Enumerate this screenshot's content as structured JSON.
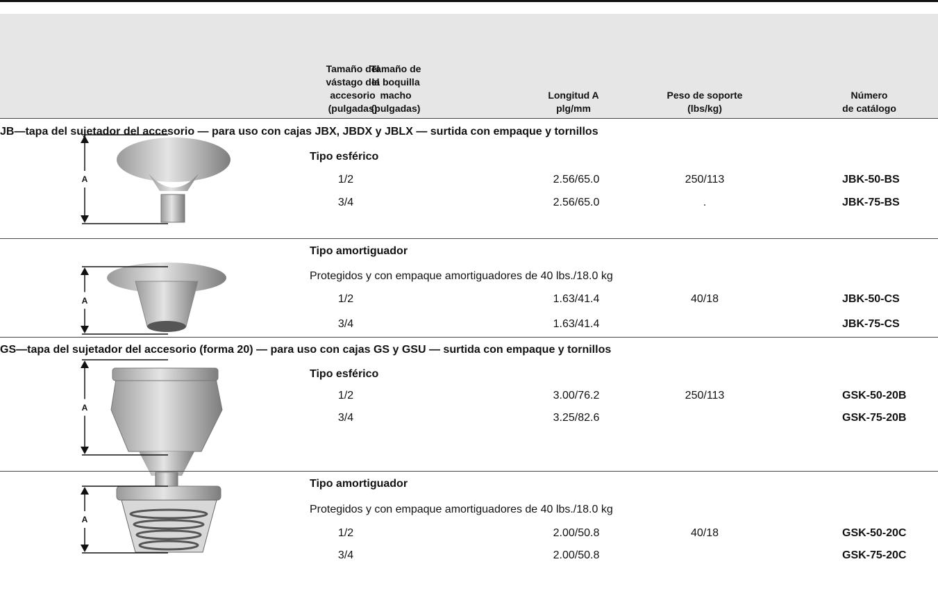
{
  "header": {
    "columns": [
      [
        "Tamaño del",
        "vástago del",
        "accesorio",
        "(pulgadas)"
      ],
      [
        "Tamaño de",
        "la boquilla",
        "macho",
        "(pulgadas)"
      ],
      [
        "Longitud A",
        "plg/mm"
      ],
      [
        "Peso de soporte",
        "(lbs/kg)"
      ],
      [
        "Número",
        "de catálogo"
      ]
    ]
  },
  "sections": [
    {
      "title": "JB—tapa del sujetador del accesorio — para uso con cajas JBX, JBDX y JBLX — surtida con empaque y tornillos",
      "groups": [
        {
          "dimension": "A",
          "type": "Tipo esférico",
          "rows": [
            {
              "size": "1/2",
              "length": "2.56/65.0",
              "weight": "250/113",
              "catalog": "JBK-50-BS"
            },
            {
              "size": "3/4",
              "length": "2.56/65.0",
              "weight": ".",
              "catalog": "JBK-75-BS"
            }
          ]
        },
        {
          "dimension": "A",
          "type": "Tipo amortiguador",
          "note": "Protegidos y con empaque amortiguadores de 40 lbs./18.0 kg",
          "rows": [
            {
              "size": "1/2",
              "length": "1.63/41.4",
              "weight": "40/18",
              "catalog": "JBK-50-CS"
            },
            {
              "size": "3/4",
              "length": "1.63/41.4",
              "catalog": "JBK-75-CS"
            }
          ]
        }
      ]
    },
    {
      "title": "GS—tapa del sujetador del accesorio (forma 20) — para uso con cajas GS y GSU — surtida con empaque y tornillos",
      "groups": [
        {
          "dimension": "A",
          "type": "Tipo esférico",
          "rows": [
            {
              "size": "1/2",
              "length": "3.00/76.2",
              "weight": "250/113",
              "catalog": "GSK-50-20B"
            },
            {
              "size": "3/4",
              "length": "3.25/82.6",
              "catalog": "GSK-75-20B"
            }
          ]
        },
        {
          "dimension": "A",
          "type": "Tipo amortiguador",
          "note": "Protegidos y con empaque amortiguadores de 40 lbs./18.0 kg",
          "rows": [
            {
              "size": "1/2",
              "length": "2.00/50.8",
              "weight": "40/18",
              "catalog": "GSK-50-20C"
            },
            {
              "size": "3/4",
              "length": "2.00/50.8",
              "catalog": "GSK-75-20C"
            }
          ]
        }
      ]
    }
  ]
}
